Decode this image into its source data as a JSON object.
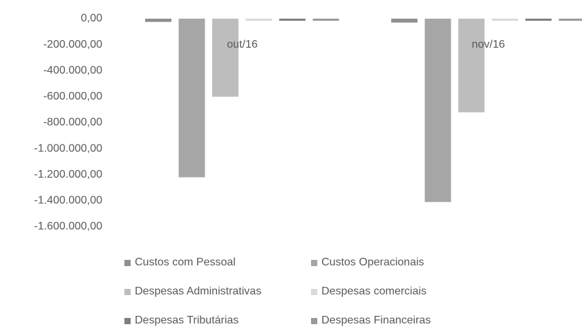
{
  "chart_data": {
    "type": "bar",
    "categories": [
      "out/16",
      "nov/16"
    ],
    "series": [
      {
        "name": "Custos com Pessoal",
        "color": "#8f8f8f",
        "values": [
          -25000,
          -30000
        ]
      },
      {
        "name": "Custos Operacionais",
        "color": "#a6a6a6",
        "values": [
          -1220000,
          -1410000
        ]
      },
      {
        "name": "Despesas Administrativas",
        "color": "#bdbdbd",
        "values": [
          -600000,
          -720000
        ]
      },
      {
        "name": "Despesas comerciais",
        "color": "#d9d9d9",
        "values": [
          -3000,
          -2000
        ]
      },
      {
        "name": "Despesas Tributárias",
        "color": "#7f7f7f",
        "values": [
          -10000,
          -8000
        ]
      },
      {
        "name": "Despesas Financeiras",
        "color": "#999999",
        "values": [
          -15000,
          -10000
        ]
      }
    ],
    "ylim": [
      -1600000,
      0
    ],
    "yticks": [
      {
        "value": 0,
        "label": "0,00"
      },
      {
        "value": -200000,
        "label": "-200.000,00"
      },
      {
        "value": -400000,
        "label": "-400.000,00"
      },
      {
        "value": -600000,
        "label": "-600.000,00"
      },
      {
        "value": -800000,
        "label": "-800.000,00"
      },
      {
        "value": -1000000,
        "label": "-1.000.000,00"
      },
      {
        "value": -1200000,
        "label": "-1.200.000,00"
      },
      {
        "value": -1400000,
        "label": "-1.400.000,00"
      },
      {
        "value": -1600000,
        "label": "-1.600.000,00"
      }
    ],
    "grid": false,
    "legend": "bottom"
  }
}
